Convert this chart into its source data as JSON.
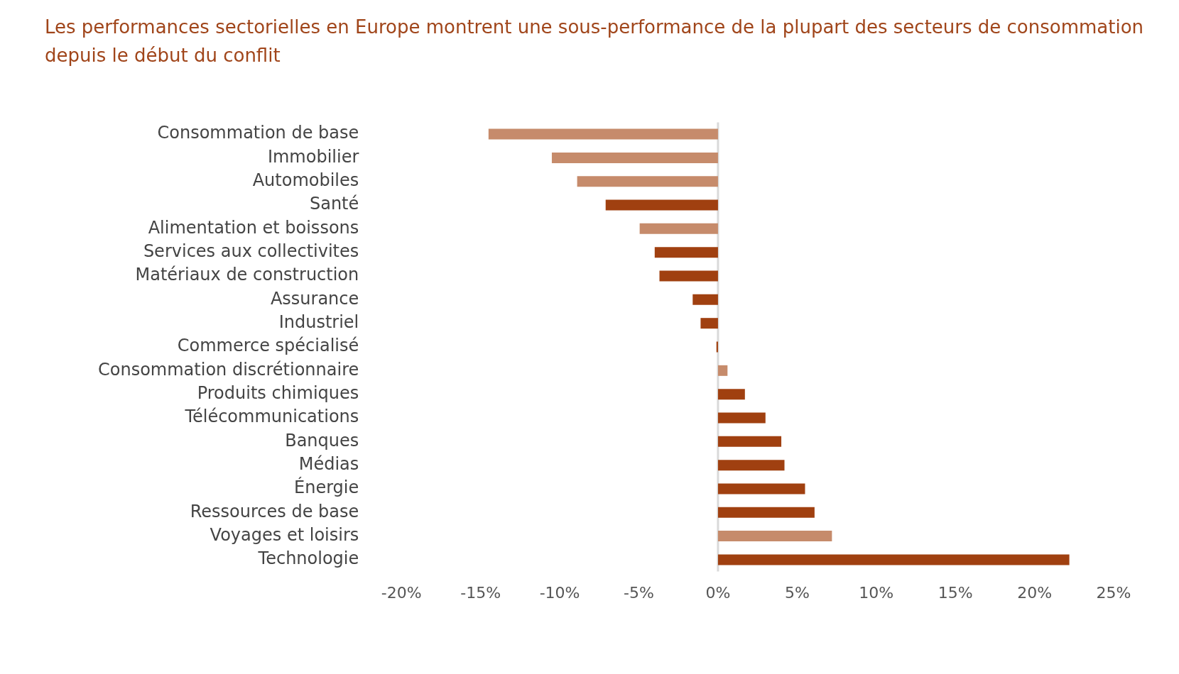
{
  "chart_data": {
    "type": "bar",
    "orientation": "horizontal",
    "title": "Les performances sectorielles en Europe montrent une sous-performance de la plupart des secteurs de consommation depuis le début du conflit",
    "categories": [
      "Consommation de base",
      "Immobilier",
      "Automobiles",
      "Santé",
      "Alimentation et boissons",
      "Services aux collectivites",
      "Matériaux de construction",
      "Assurance",
      "Industriel",
      "Commerce spécialisé",
      "Consommation discrétionnaire",
      "Produits chimiques",
      "Télécommunications",
      "Banques",
      "Médias",
      "Énergie",
      "Ressources de base",
      "Voyages et loisirs",
      "Technologie"
    ],
    "values": [
      -14.5,
      -10.5,
      -8.9,
      -7.1,
      -4.95,
      -4.0,
      -3.7,
      -1.6,
      -1.1,
      -0.1,
      0.6,
      1.7,
      3.0,
      4.0,
      4.2,
      5.5,
      6.1,
      7.2,
      22.2
    ],
    "colors": [
      "#c68b6b",
      "#c68b6b",
      "#c68b6b",
      "#a04010",
      "#c68b6b",
      "#a04010",
      "#a04010",
      "#a04010",
      "#a04010",
      "#a04010",
      "#c68b6b",
      "#a04010",
      "#a04010",
      "#a04010",
      "#a04010",
      "#a04010",
      "#a04010",
      "#c68b6b",
      "#a04010"
    ],
    "xlim": [
      -20,
      25
    ],
    "xticks": [
      {
        "value": -20,
        "label": "-20%"
      },
      {
        "value": -15,
        "label": "-15%"
      },
      {
        "value": -10,
        "label": "-10%"
      },
      {
        "value": -5,
        "label": "-5%"
      },
      {
        "value": 0,
        "label": "0%"
      },
      {
        "value": 5,
        "label": "5%"
      },
      {
        "value": 10,
        "label": "10%"
      },
      {
        "value": 15,
        "label": "15%"
      },
      {
        "value": 20,
        "label": "20%"
      },
      {
        "value": 25,
        "label": "25%"
      }
    ],
    "ref_lines": [
      {
        "axis": "x",
        "value": 0,
        "color": "#d9d9d9"
      }
    ],
    "legend": false
  }
}
